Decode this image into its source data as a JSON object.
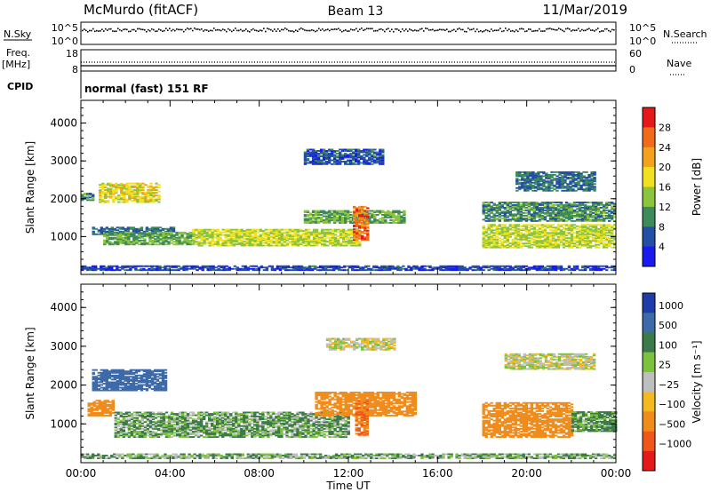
{
  "header": {
    "station": "McMurdo (fitACF)",
    "beam": "Beam 13",
    "date": "11/Mar/2019"
  },
  "top_panels": {
    "nsky": {
      "left_label": "N.Sky",
      "right_label": "N.Search",
      "tick_top": "10^5",
      "tick_bottom": "10^0"
    },
    "freq": {
      "left_label_1": "Freq.",
      "left_label_2": "[MHz]",
      "right_label": "Nave",
      "left_top": "18",
      "left_bottom": "8",
      "right_top": "60",
      "right_bottom": "0"
    },
    "cpid": {
      "label": "CPID",
      "text": "normal (fast) 151 RF"
    }
  },
  "colors": {
    "power": [
      "#1a1af0",
      "#244fa6",
      "#3d8a5a",
      "#8cc43c",
      "#f0e020",
      "#f4a21e",
      "#f06c1a",
      "#e41a1a"
    ],
    "velocity": [
      "#1e3caa",
      "#3d6aa8",
      "#3d7a4a",
      "#7cc23c",
      "#bebebe",
      "#f4b820",
      "#f08c1c",
      "#f0561a",
      "#e41a1a"
    ]
  },
  "chart_data": [
    {
      "type": "heatmap",
      "title": "",
      "xlabel": "",
      "ylabel": "Slant Range [km]",
      "x_range_hours": [
        0,
        24
      ],
      "ylim": [
        0,
        4600
      ],
      "x_ticks": [],
      "y_ticks": [
        "1000",
        "2000",
        "3000",
        "4000"
      ],
      "colorbar": {
        "label": "Power [dB]",
        "ticks": [
          "4",
          "8",
          "12",
          "16",
          "20",
          "24",
          "28"
        ],
        "range": [
          0,
          32
        ]
      },
      "regions": [
        {
          "t": [
            0.0,
            0.5
          ],
          "r": [
            1950,
            2150
          ],
          "v": 10
        },
        {
          "t": [
            0.5,
            4.2
          ],
          "r": [
            1050,
            1250
          ],
          "v": 8
        },
        {
          "t": [
            0.8,
            3.5
          ],
          "r": [
            1900,
            2400
          ],
          "v": 18
        },
        {
          "t": [
            1.0,
            5.0
          ],
          "r": [
            780,
            1100
          ],
          "v": 12
        },
        {
          "t": [
            5.0,
            12.5
          ],
          "r": [
            750,
            1200
          ],
          "v": 16
        },
        {
          "t": [
            10.0,
            14.5
          ],
          "r": [
            1350,
            1700
          ],
          "v": 12
        },
        {
          "t": [
            12.2,
            12.8
          ],
          "r": [
            900,
            1800
          ],
          "v": 26
        },
        {
          "t": [
            10.0,
            13.5
          ],
          "r": [
            2900,
            3300
          ],
          "v": 6
        },
        {
          "t": [
            18.0,
            24.0
          ],
          "r": [
            700,
            1300
          ],
          "v": 16
        },
        {
          "t": [
            18.0,
            24.0
          ],
          "r": [
            1400,
            1900
          ],
          "v": 10
        },
        {
          "t": [
            19.5,
            23.0
          ],
          "r": [
            2200,
            2700
          ],
          "v": 8
        },
        {
          "t": [
            0.0,
            24.0
          ],
          "r": [
            100,
            220
          ],
          "v": 5
        }
      ]
    },
    {
      "type": "heatmap",
      "title": "",
      "xlabel": "Time UT",
      "ylabel": "Slant Range [km]",
      "x_range_hours": [
        0,
        24
      ],
      "ylim": [
        0,
        4600
      ],
      "x_ticks": [
        "00:00",
        "04:00",
        "08:00",
        "12:00",
        "16:00",
        "20:00",
        "00:00"
      ],
      "y_ticks": [
        "1000",
        "2000",
        "3000",
        "4000"
      ],
      "colorbar": {
        "label": "Velocity [m s⁻¹]",
        "ticks": [
          "1000",
          "500",
          "100",
          "25",
          "−25",
          "−100",
          "−500",
          "−1000"
        ]
      },
      "regions": [
        {
          "t": [
            0.5,
            3.8
          ],
          "r": [
            1850,
            2400
          ],
          "v": 500
        },
        {
          "t": [
            0.3,
            1.5
          ],
          "r": [
            1200,
            1600
          ],
          "v": -200
        },
        {
          "t": [
            1.5,
            12.0
          ],
          "r": [
            650,
            1300
          ],
          "v": 60
        },
        {
          "t": [
            10.5,
            15.0
          ],
          "r": [
            1200,
            1800
          ],
          "v": -150
        },
        {
          "t": [
            12.3,
            12.8
          ],
          "r": [
            700,
            1600
          ],
          "v": -300
        },
        {
          "t": [
            11.0,
            14.0
          ],
          "r": [
            2900,
            3200
          ],
          "v": 0
        },
        {
          "t": [
            18.0,
            22.0
          ],
          "r": [
            650,
            1550
          ],
          "v": -200
        },
        {
          "t": [
            22.0,
            24.0
          ],
          "r": [
            800,
            1300
          ],
          "v": 80
        },
        {
          "t": [
            19.0,
            23.0
          ],
          "r": [
            2400,
            2800
          ],
          "v": 0
        },
        {
          "t": [
            0.0,
            24.0
          ],
          "r": [
            100,
            220
          ],
          "v": 50
        }
      ]
    }
  ]
}
